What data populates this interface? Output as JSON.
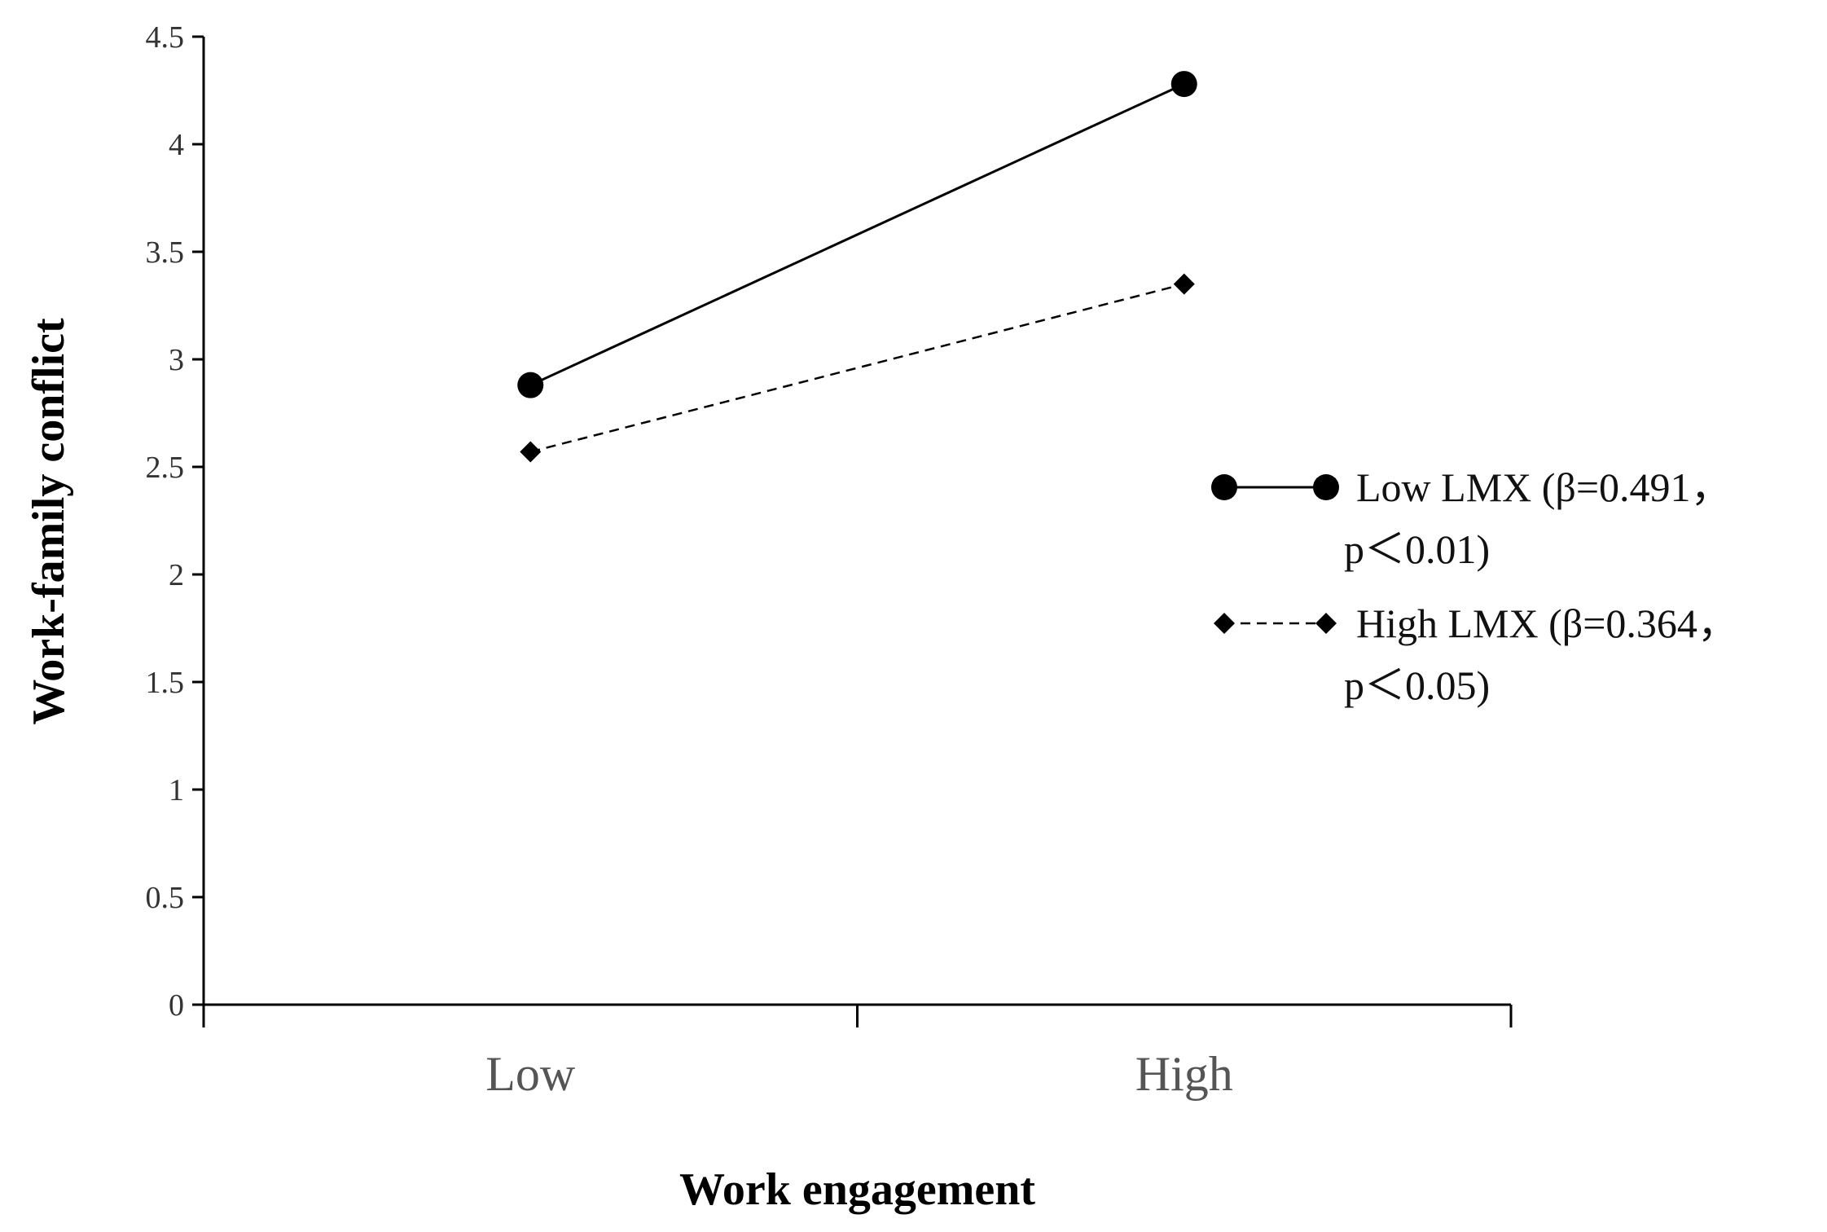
{
  "chart_data": {
    "type": "line",
    "categories": [
      "Low",
      "High"
    ],
    "series": [
      {
        "name": "Low LMX (β=0.491，p＜0.01)",
        "legend_lines": [
          "Low LMX (β=0.491，",
          "p＜0.01)"
        ],
        "values": [
          2.88,
          4.28
        ],
        "line_style": "solid",
        "marker": "circle",
        "color": "#000000"
      },
      {
        "name": "High LMX (β=0.364，p＜0.05)",
        "legend_lines": [
          "High LMX (β=0.364，",
          "p＜0.05)"
        ],
        "values": [
          2.57,
          3.35
        ],
        "line_style": "dashed",
        "marker": "diamond",
        "color": "#000000"
      }
    ],
    "xlabel": "Work engagement",
    "ylabel": "Work-family conflict",
    "ylim": [
      0,
      4.5
    ],
    "yticks": [
      "0",
      "0.5",
      "1",
      "1.5",
      "2",
      "2.5",
      "3",
      "3.5",
      "4",
      "4.5"
    ],
    "grid": false,
    "legend_position": "right"
  }
}
